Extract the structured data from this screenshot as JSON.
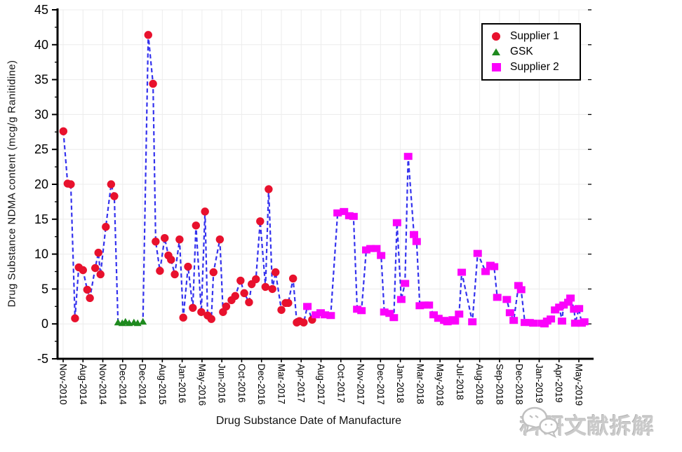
{
  "chart_data": {
    "type": "scatter",
    "title": "",
    "xlabel": "Drug Substance Date of Manufacture",
    "ylabel": "Drug Substance NDMA content (mcg/g Ranitidine)",
    "ylim": [
      -5,
      45
    ],
    "y_ticks": [
      -5,
      0,
      5,
      10,
      15,
      20,
      25,
      30,
      35,
      40,
      45
    ],
    "x_tick_labels": [
      "Nov-2010",
      "Aug-2014",
      "Nov-2014",
      "Dec-2014",
      "Dec-2014",
      "Aug-2015",
      "Jan-2016",
      "May-2016",
      "Jun-2016",
      "Oct-2016",
      "Dec-2016",
      "Mar-2017",
      "Apr-2017",
      "Aug-2017",
      "Oct-2017",
      "Nov-2017",
      "Dec-2017",
      "Jan-2018",
      "Mar-2018",
      "May-2018",
      "Jul-2018",
      "Aug-2018",
      "Sep-2018",
      "Dec-2018",
      "Jan-2019",
      "Apr-2019",
      "May-2019"
    ],
    "grid": true,
    "legend_position": "top-right",
    "connector": "single blue dashed line joining all batches in date order",
    "x_unit": "percent position along date axis (batch manufacture date)",
    "series": [
      {
        "name": "Supplier 1",
        "marker": "circle",
        "color": "#e8112d",
        "points": [
          [
            1.1,
            27.6
          ],
          [
            1.9,
            20.1
          ],
          [
            2.5,
            20.0
          ],
          [
            3.3,
            0.8
          ],
          [
            4.0,
            8.1
          ],
          [
            4.8,
            7.7
          ],
          [
            5.6,
            4.9
          ],
          [
            6.1,
            3.7
          ],
          [
            7.1,
            8.0
          ],
          [
            7.7,
            10.2
          ],
          [
            8.1,
            7.1
          ],
          [
            9.1,
            13.9
          ],
          [
            10.1,
            20.0
          ],
          [
            10.7,
            18.3
          ],
          [
            17.1,
            41.4
          ],
          [
            18.0,
            34.4
          ],
          [
            18.5,
            11.8
          ],
          [
            19.3,
            7.6
          ],
          [
            20.2,
            12.3
          ],
          [
            20.9,
            9.8
          ],
          [
            21.4,
            9.2
          ],
          [
            22.1,
            7.1
          ],
          [
            23.0,
            12.1
          ],
          [
            23.7,
            0.9
          ],
          [
            24.6,
            8.2
          ],
          [
            25.5,
            2.3
          ],
          [
            26.1,
            14.1
          ],
          [
            27.1,
            1.7
          ],
          [
            27.8,
            16.1
          ],
          [
            28.3,
            1.2
          ],
          [
            29.0,
            0.7
          ],
          [
            29.4,
            7.4
          ],
          [
            30.6,
            12.1
          ],
          [
            31.2,
            1.7
          ],
          [
            31.8,
            2.5
          ],
          [
            32.8,
            3.4
          ],
          [
            33.5,
            4.0
          ],
          [
            34.5,
            6.2
          ],
          [
            35.2,
            4.4
          ],
          [
            36.1,
            3.1
          ],
          [
            36.6,
            5.7
          ],
          [
            37.4,
            6.4
          ],
          [
            38.2,
            14.7
          ],
          [
            39.2,
            5.3
          ],
          [
            39.8,
            19.3
          ],
          [
            40.5,
            5.0
          ],
          [
            41.1,
            7.4
          ],
          [
            42.2,
            2.0
          ],
          [
            43.0,
            3.0
          ],
          [
            43.5,
            3.0
          ],
          [
            44.4,
            6.5
          ],
          [
            45.1,
            0.2
          ],
          [
            45.6,
            0.4
          ],
          [
            46.4,
            0.2
          ],
          [
            48.0,
            0.6
          ]
        ]
      },
      {
        "name": "GSK",
        "marker": "triangle",
        "color": "#1e8a1e",
        "points": [
          [
            11.4,
            0.2
          ],
          [
            12.2,
            0.1
          ],
          [
            12.8,
            0.3
          ],
          [
            13.5,
            0.1
          ],
          [
            14.4,
            0.2
          ],
          [
            15.1,
            0.1
          ],
          [
            16.1,
            0.3
          ]
        ]
      },
      {
        "name": "Supplier 2",
        "marker": "square",
        "color": "#fb02fb",
        "points": [
          [
            47.1,
            2.5
          ],
          [
            48.7,
            1.3
          ],
          [
            49.6,
            1.6
          ],
          [
            50.4,
            1.3
          ],
          [
            51.5,
            1.2
          ],
          [
            52.8,
            15.9
          ],
          [
            54.0,
            16.1
          ],
          [
            55.0,
            15.5
          ],
          [
            55.8,
            15.4
          ],
          [
            56.5,
            2.1
          ],
          [
            57.3,
            1.9
          ],
          [
            58.2,
            10.6
          ],
          [
            59.0,
            10.8
          ],
          [
            60.1,
            10.8
          ],
          [
            61.0,
            9.8
          ],
          [
            61.6,
            1.7
          ],
          [
            62.6,
            1.5
          ],
          [
            63.4,
            0.9
          ],
          [
            64.0,
            14.5
          ],
          [
            64.8,
            3.5
          ],
          [
            65.5,
            5.8
          ],
          [
            66.1,
            24.0
          ],
          [
            67.2,
            12.8
          ],
          [
            67.7,
            11.8
          ],
          [
            68.3,
            2.6
          ],
          [
            69.2,
            2.7
          ],
          [
            70.0,
            2.7
          ],
          [
            70.9,
            1.3
          ],
          [
            71.8,
            0.8
          ],
          [
            72.9,
            0.5
          ],
          [
            73.5,
            0.3
          ],
          [
            74.5,
            0.6
          ],
          [
            74.9,
            0.4
          ],
          [
            75.7,
            1.4
          ],
          [
            76.2,
            7.4
          ],
          [
            78.2,
            0.3
          ],
          [
            79.2,
            10.1
          ],
          [
            80.7,
            7.5
          ],
          [
            81.6,
            8.4
          ],
          [
            82.3,
            8.2
          ],
          [
            82.9,
            3.8
          ],
          [
            84.7,
            3.5
          ],
          [
            85.3,
            1.6
          ],
          [
            86.0,
            0.5
          ],
          [
            86.9,
            5.5
          ],
          [
            87.4,
            4.9
          ],
          [
            88.1,
            0.2
          ],
          [
            89.0,
            0.2
          ],
          [
            89.7,
            0.1
          ],
          [
            91.3,
            0.1
          ],
          [
            91.8,
            0.0
          ],
          [
            92.3,
            0.4
          ],
          [
            93.0,
            0.7
          ],
          [
            93.8,
            2.0
          ],
          [
            94.6,
            2.4
          ],
          [
            95.1,
            0.4
          ],
          [
            95.4,
            2.7
          ],
          [
            96.3,
            3.1
          ],
          [
            96.7,
            3.7
          ],
          [
            97.4,
            2.1
          ],
          [
            97.6,
            0.1
          ],
          [
            98.3,
            2.2
          ],
          [
            98.8,
            0.1
          ],
          [
            99.3,
            0.3
          ]
        ]
      }
    ]
  },
  "legend": {
    "items": [
      {
        "label": "Supplier 1"
      },
      {
        "label": "GSK"
      },
      {
        "label": "Supplier 2"
      }
    ]
  },
  "watermark": {
    "text": "科研文献拆解",
    "icon": "wechat-icon"
  },
  "colors": {
    "line": "#3432ee",
    "grid": "#ececec",
    "axis": "#000000",
    "supplier1": "#e8112d",
    "gsk": "#1e8a1e",
    "supplier2": "#fb02fb",
    "watermark_gray": "#cbcbcb"
  }
}
